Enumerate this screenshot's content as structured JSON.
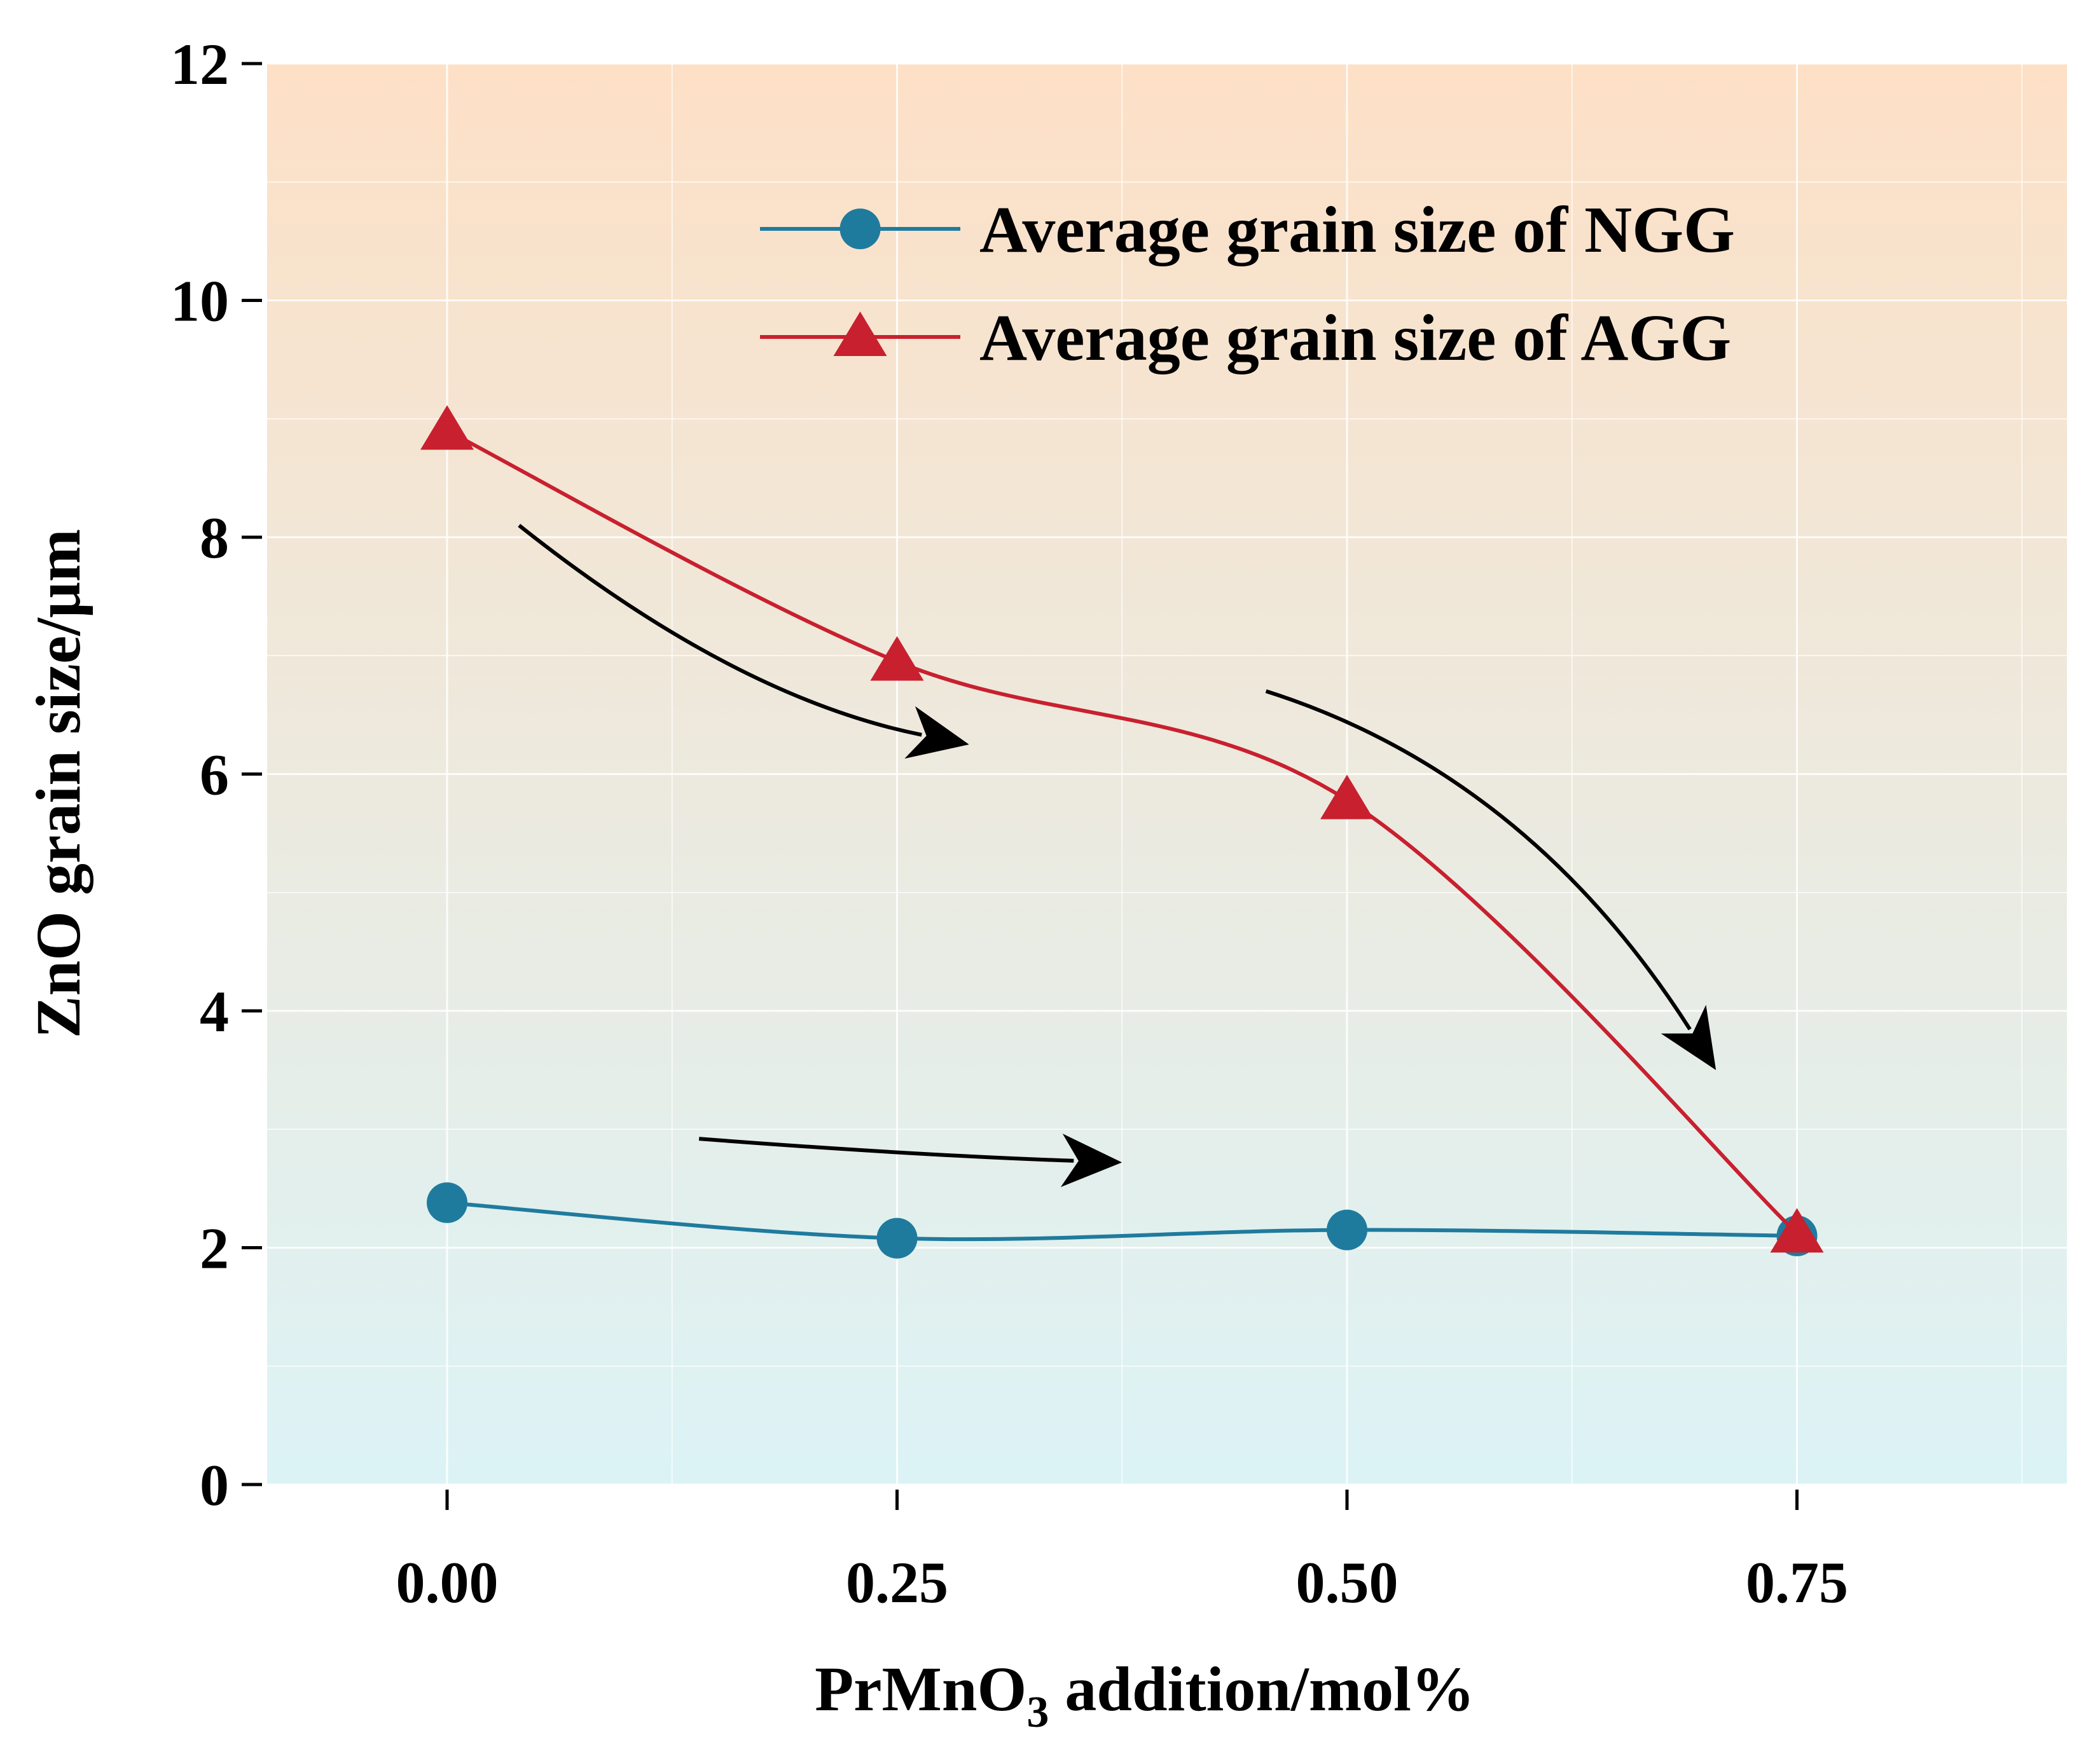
{
  "chart_data": {
    "type": "line",
    "title": "",
    "xlabel": {
      "base": "PrMnO",
      "sub": "3",
      "rest": " addition/mol%"
    },
    "ylabel": "ZnO grain size/μm",
    "xlim": [
      -0.1,
      0.9
    ],
    "ylim": [
      0,
      12
    ],
    "x_ticks": [
      0.0,
      0.25,
      0.5,
      0.75
    ],
    "x_tick_labels": [
      "0.00",
      "0.25",
      "0.50",
      "0.75"
    ],
    "y_ticks": [
      0,
      2,
      4,
      6,
      8,
      10,
      12
    ],
    "y_tick_labels": [
      "0",
      "2",
      "4",
      "6",
      "8",
      "10",
      "12"
    ],
    "grid": true,
    "legend_position": "top-right",
    "background_gradient": {
      "top": "#fde0c6",
      "bottom": "#dcf3f6"
    },
    "series": [
      {
        "name": "Average grain size of NGG",
        "marker": "circle",
        "color": "#1f7b9e",
        "x": [
          0.0,
          0.25,
          0.5,
          0.75
        ],
        "y": [
          2.38,
          2.08,
          2.15,
          2.1
        ]
      },
      {
        "name": "Average grain size of AGG",
        "marker": "triangle",
        "color": "#c8202f",
        "x": [
          0.0,
          0.25,
          0.5,
          0.75
        ],
        "y": [
          8.9,
          6.95,
          5.78,
          2.12
        ]
      }
    ],
    "annotations": [
      {
        "type": "arrow",
        "color": "#000000",
        "from": [
          0.04,
          8.1
        ],
        "ctrl": [
          0.16,
          6.65
        ],
        "to": [
          0.29,
          6.25
        ]
      },
      {
        "type": "arrow",
        "color": "#000000",
        "from": [
          0.455,
          6.7
        ],
        "ctrl": [
          0.6,
          6.0
        ],
        "to": [
          0.705,
          3.5
        ]
      },
      {
        "type": "arrow",
        "color": "#000000",
        "from": [
          0.14,
          2.92
        ],
        "ctrl": [
          0.26,
          2.78
        ],
        "to": [
          0.375,
          2.72
        ]
      }
    ]
  }
}
